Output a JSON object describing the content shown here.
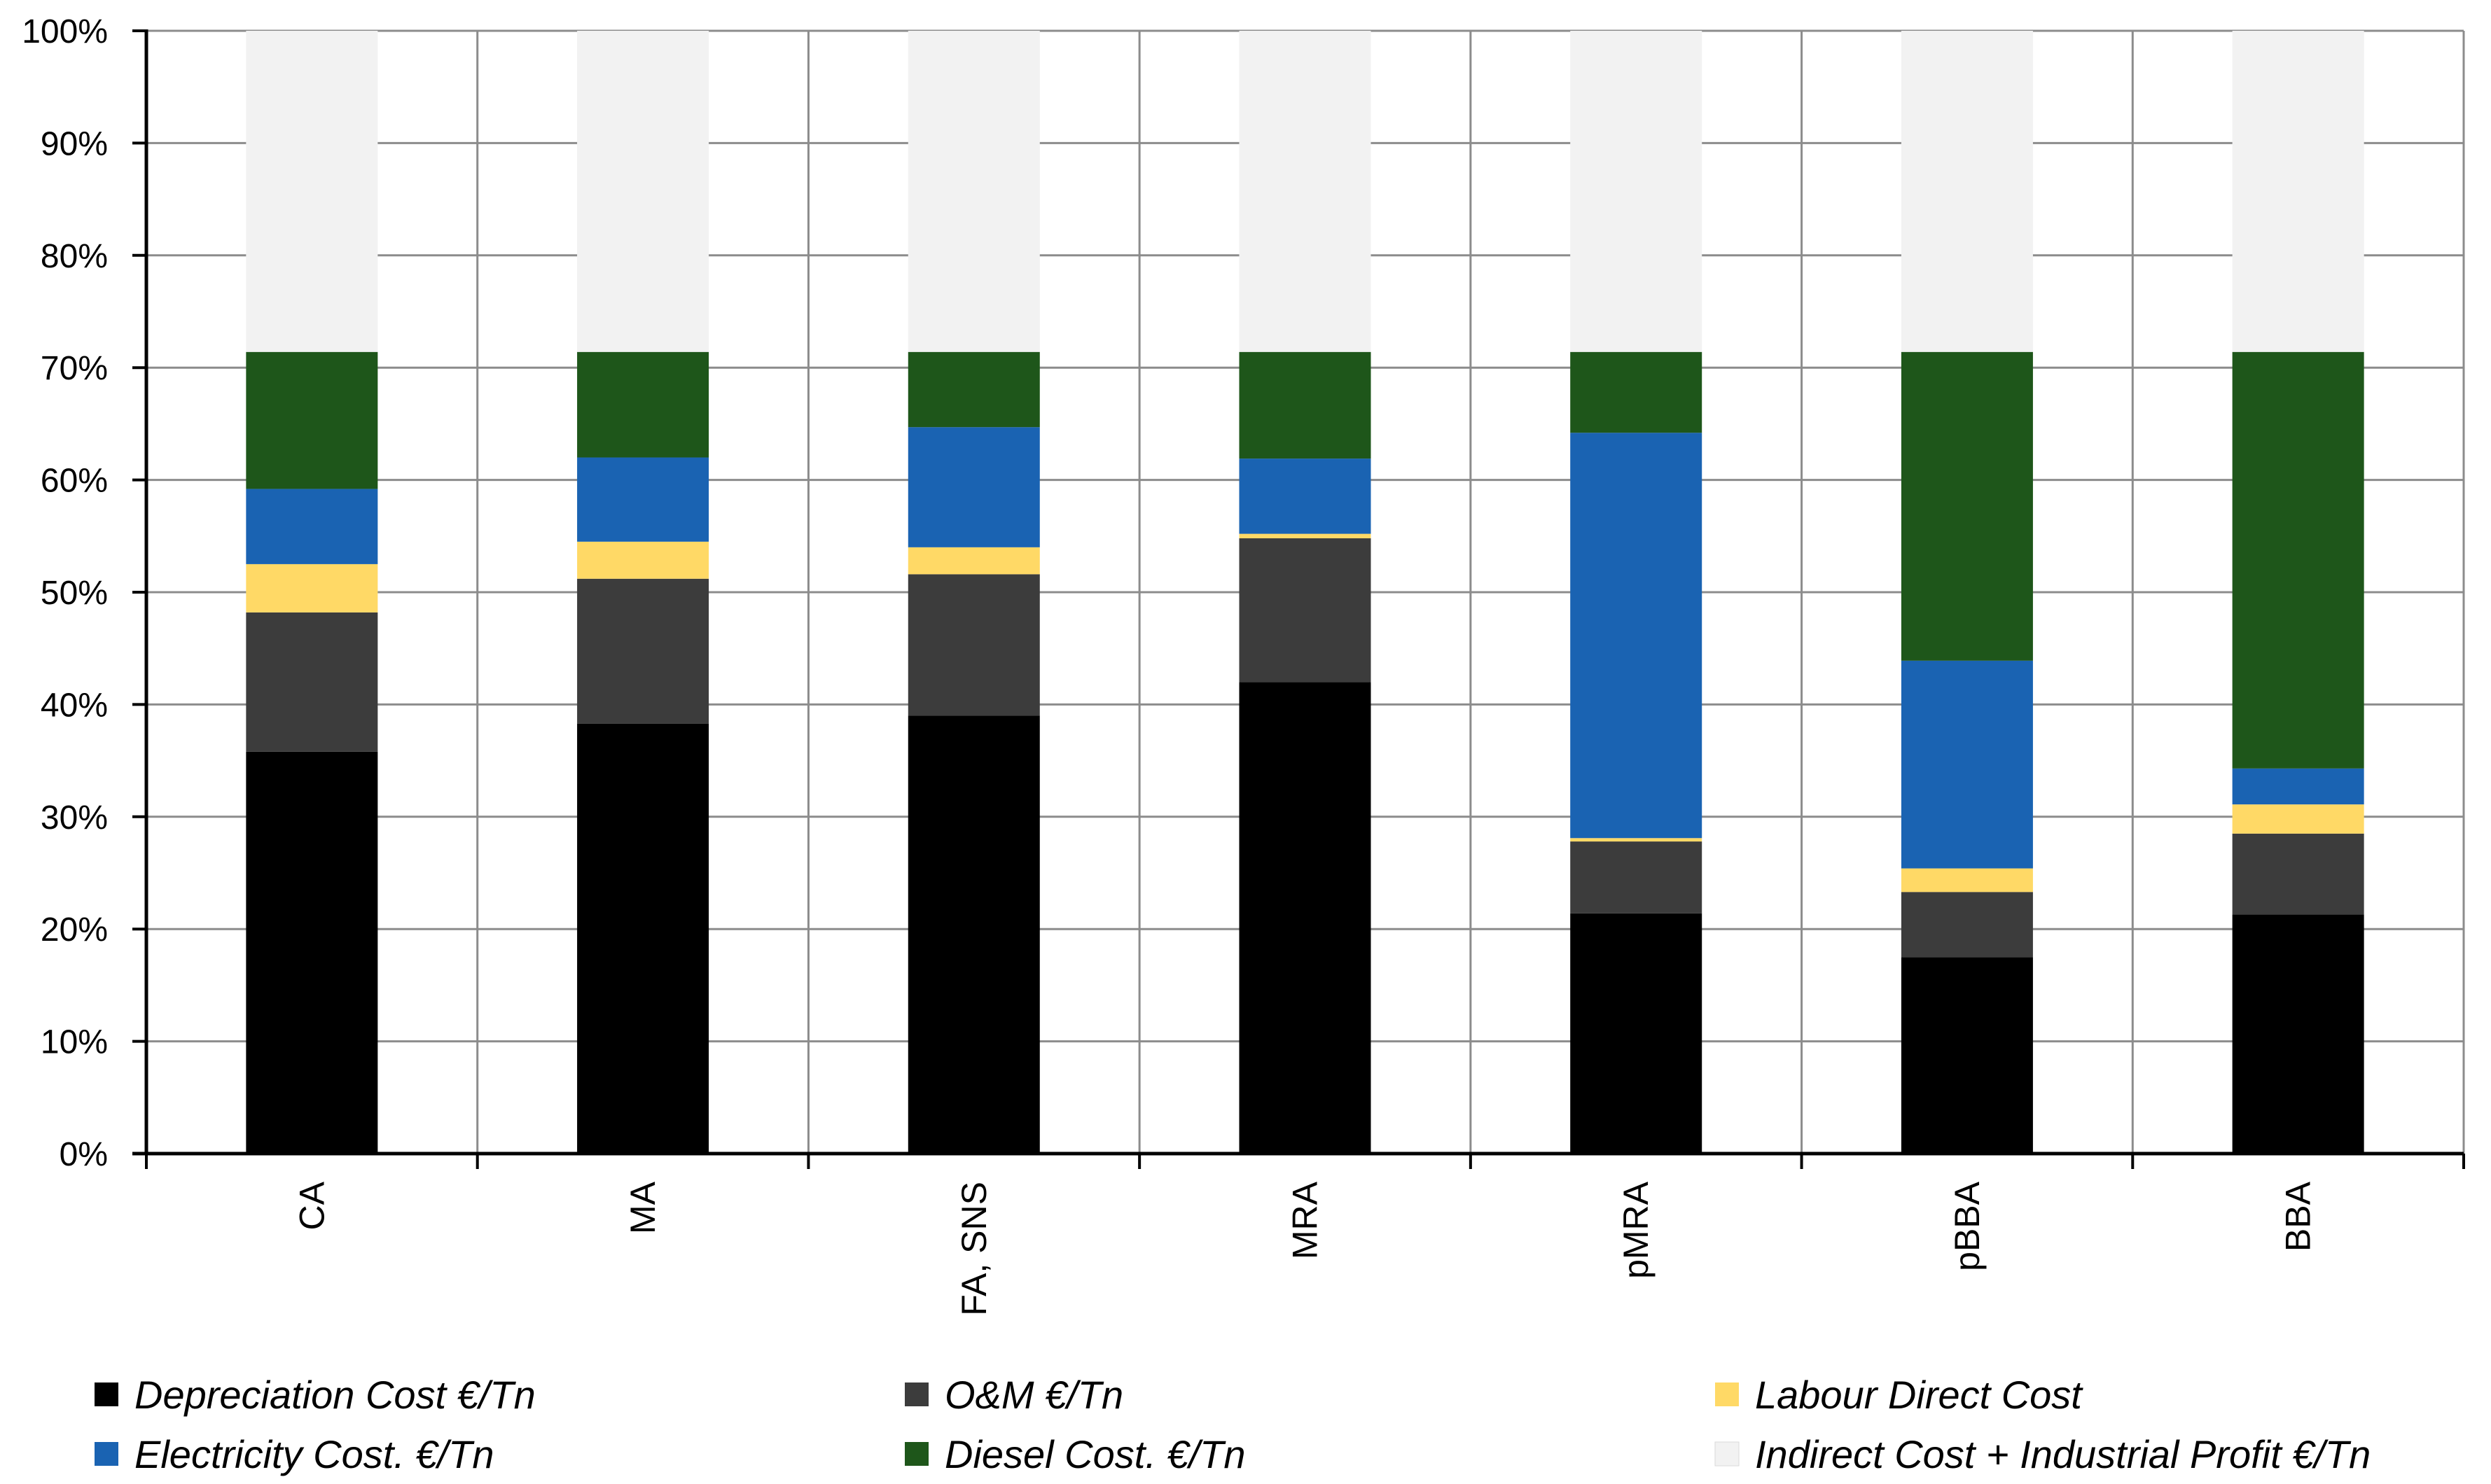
{
  "chart_data": {
    "type": "bar",
    "stacked": true,
    "percent": true,
    "categories": [
      "CA",
      "MA",
      "FA, SNS",
      "MRA",
      "pMRA",
      "pBBA",
      "BBA"
    ],
    "series": [
      {
        "name": "Depreciation Cost €/Tn",
        "color": "#000000",
        "values": [
          35.8,
          38.3,
          39.0,
          42.0,
          21.4,
          17.5,
          21.3
        ]
      },
      {
        "name": "O&M €/Tn",
        "color": "#3c3c3c",
        "values": [
          12.4,
          12.9,
          12.6,
          12.8,
          6.4,
          5.8,
          7.2
        ]
      },
      {
        "name": "Labour Direct Cost",
        "color": "#ffd966",
        "values": [
          4.3,
          3.3,
          2.4,
          0.4,
          0.3,
          2.1,
          2.6
        ]
      },
      {
        "name": "Electricity Cost. €/Tn",
        "color": "#1a63b2",
        "values": [
          6.7,
          7.5,
          10.7,
          6.7,
          36.1,
          18.5,
          3.2
        ]
      },
      {
        "name": "Diesel Cost. €/Tn",
        "color": "#1e561a",
        "values": [
          12.2,
          9.4,
          6.7,
          9.5,
          7.2,
          27.5,
          37.1
        ]
      },
      {
        "name": "Indirect Cost + Industrial Profit €/Tn",
        "color": "#f2f2f2",
        "values": [
          28.6,
          28.6,
          28.6,
          28.6,
          28.6,
          28.6,
          28.6
        ]
      }
    ],
    "y_ticks": [
      "0%",
      "10%",
      "20%",
      "30%",
      "40%",
      "50%",
      "60%",
      "70%",
      "80%",
      "90%",
      "100%"
    ],
    "ylim": [
      0,
      100
    ],
    "grid": true,
    "legend_position": "bottom",
    "title": "",
    "xlabel": "",
    "ylabel": ""
  }
}
